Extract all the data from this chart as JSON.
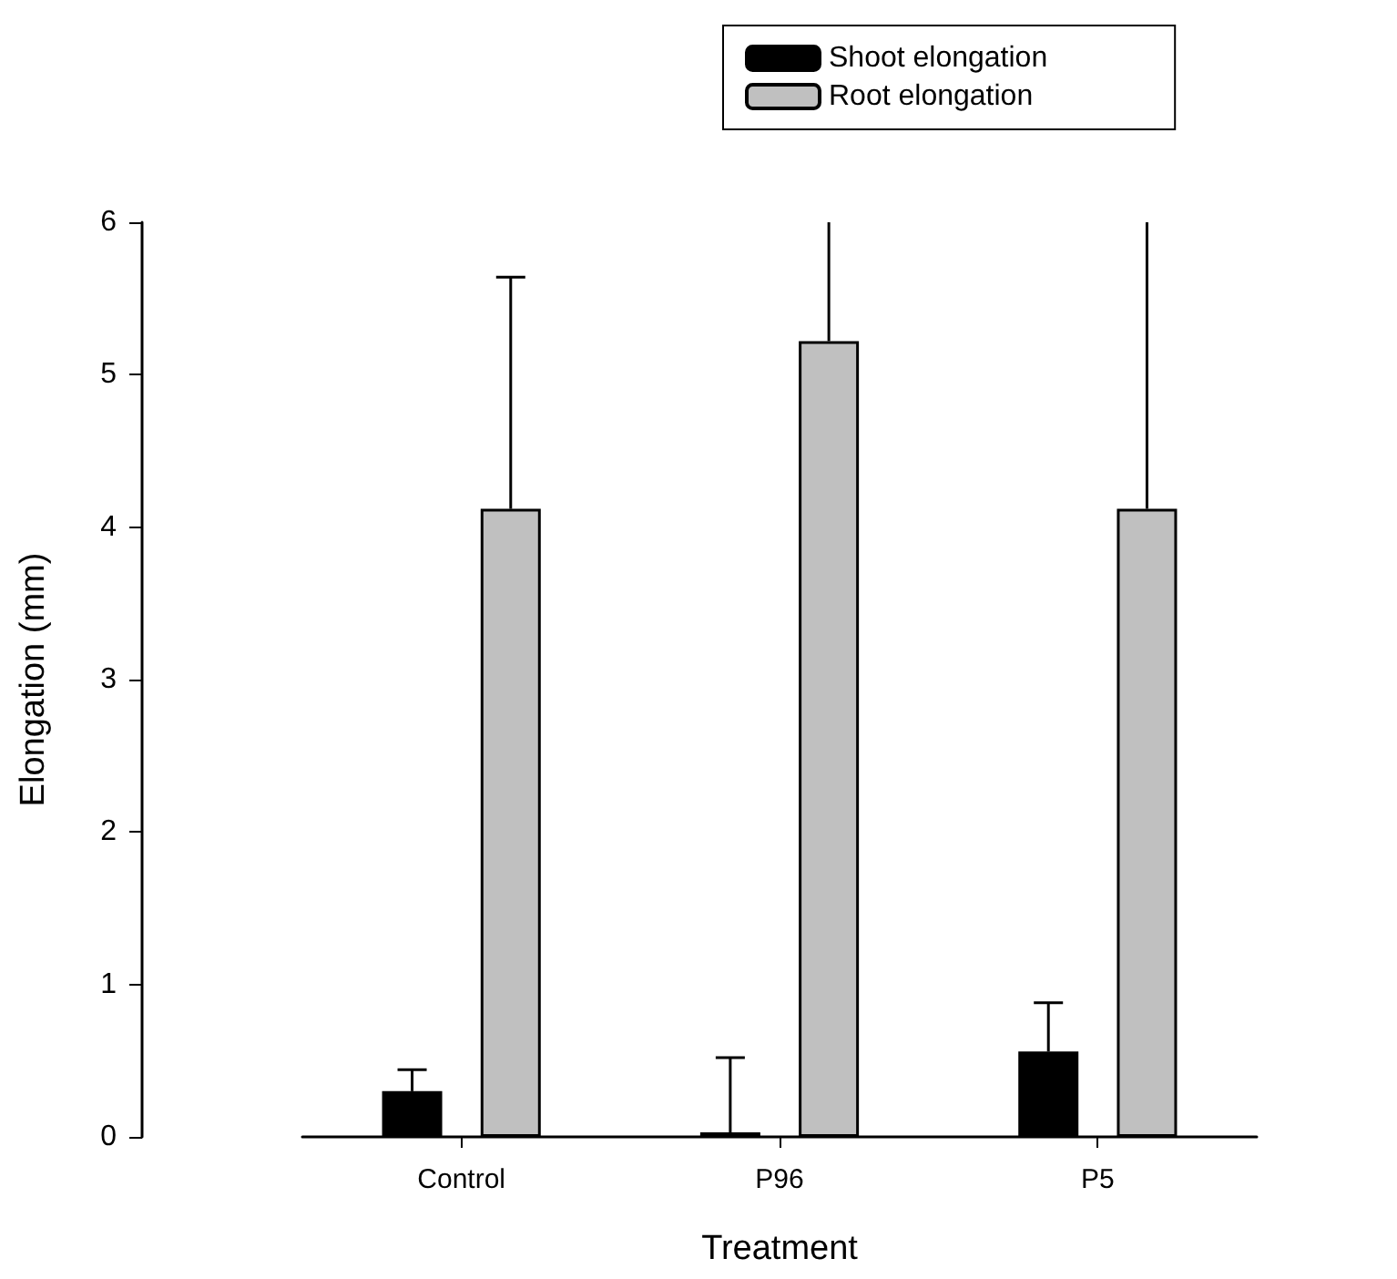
{
  "chart_data": {
    "type": "bar",
    "xlabel": "Treatment",
    "ylabel": "Elongation (mm)",
    "categories": [
      "Control",
      "P96",
      "P5"
    ],
    "series": [
      {
        "name": "Shoot elongation",
        "color": "#000000",
        "values": [
          0.3,
          0.03,
          0.56
        ],
        "errors": [
          0.14,
          0.49,
          0.32
        ]
      },
      {
        "name": "Root elongation",
        "color": "#c0c0c0",
        "values": [
          4.12,
          5.22,
          4.12
        ],
        "errors": [
          1.52,
          0.78,
          1.88
        ]
      }
    ],
    "ylim": [
      0,
      6
    ],
    "yticks": [
      0,
      1,
      2,
      3,
      4,
      5,
      6
    ],
    "grid": false,
    "legend": "top"
  }
}
